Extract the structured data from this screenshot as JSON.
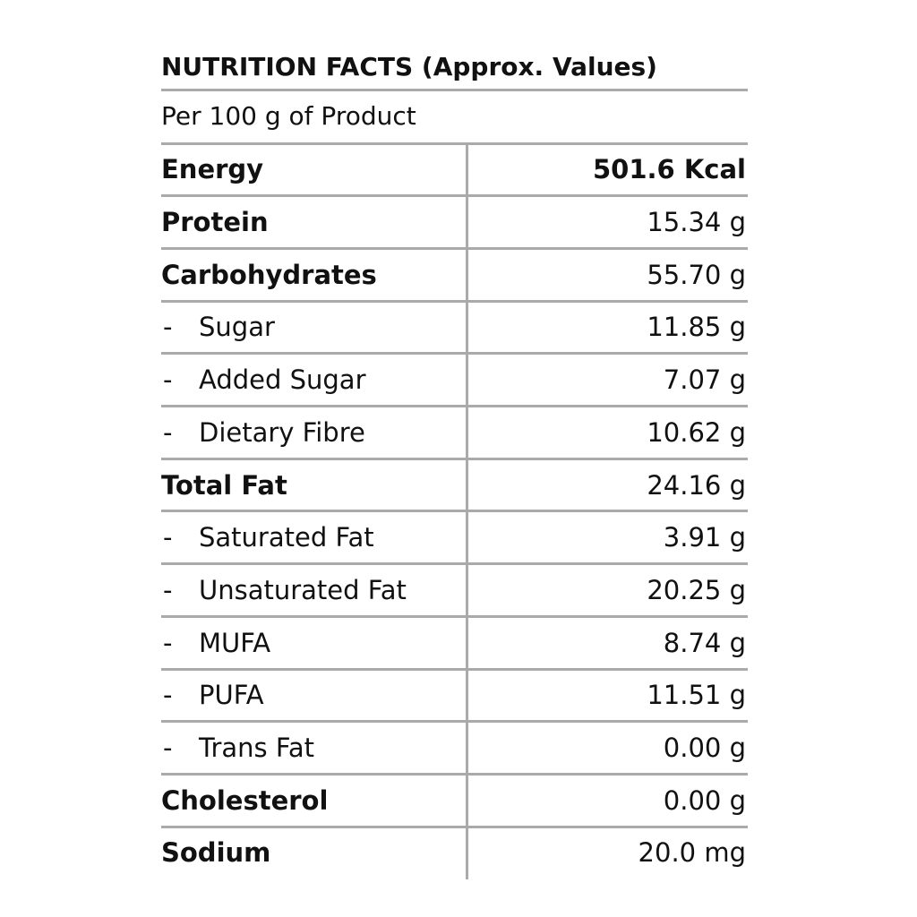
{
  "title": "NUTRITION FACTS (Approx. Values)",
  "subtitle": "Per 100 g of Product",
  "rows": [
    {
      "label": "Energy",
      "value": "501.6 Kcal",
      "bold": true,
      "value_bold": true
    },
    {
      "label": "Protein",
      "value": "15.34 g",
      "bold": true
    },
    {
      "label": "Carbohydrates",
      "value": "55.70 g",
      "bold": true
    },
    {
      "marker": "-",
      "label": "Sugar",
      "value": "11.85 g"
    },
    {
      "marker": "-",
      "label": "Added Sugar",
      "value": "7.07 g"
    },
    {
      "marker": "-",
      "label": "Dietary Fibre",
      "value": "10.62 g"
    },
    {
      "label": "Total Fat",
      "value": "24.16 g",
      "bold": true
    },
    {
      "marker": "-",
      "label": "Saturated Fat",
      "value": "3.91 g"
    },
    {
      "marker": "-",
      "label": "Unsaturated Fat",
      "value": "20.25 g"
    },
    {
      "marker": "-",
      "label": "MUFA",
      "value": "8.74 g"
    },
    {
      "marker": "-",
      "label": "PUFA",
      "value": "11.51 g"
    },
    {
      "marker": "-",
      "label": "Trans Fat",
      "value": "0.00 g"
    },
    {
      "label": "Cholesterol",
      "value": "0.00 g",
      "bold": true
    },
    {
      "label": "Sodium",
      "value": "20.0 mg",
      "bold": true
    }
  ]
}
